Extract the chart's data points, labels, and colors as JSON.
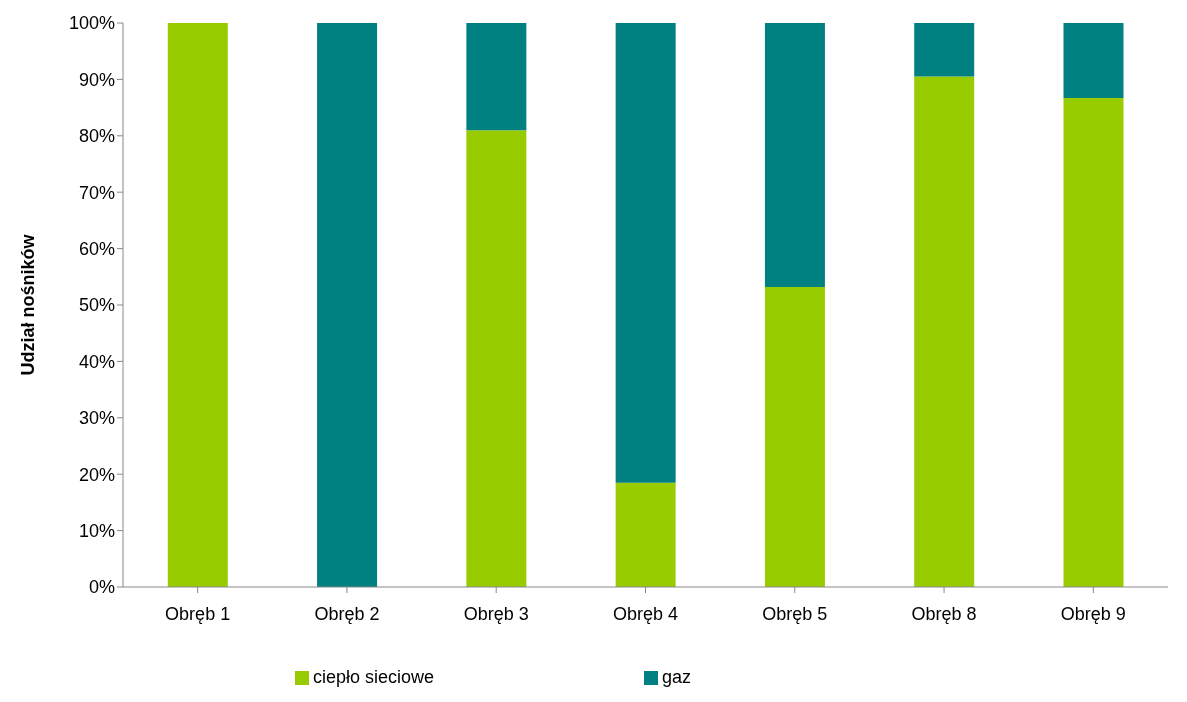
{
  "chart_data": {
    "type": "bar",
    "stacked": true,
    "ylabel": "Udział nośników",
    "categories": [
      "Obręb 1",
      "Obręb 2",
      "Obręb 3",
      "Obręb 4",
      "Obręb 5",
      "Obręb 8",
      "Obręb 9"
    ],
    "series": [
      {
        "name": "ciepło sieciowe",
        "color": "#99cc00",
        "values": [
          100,
          0,
          81,
          18.5,
          53.2,
          90.5,
          86.7
        ]
      },
      {
        "name": "gaz",
        "color": "#008080",
        "values": [
          0,
          100,
          19,
          81.5,
          46.8,
          9.5,
          13.3
        ]
      }
    ],
    "ylim": [
      0,
      100
    ],
    "yticks": [
      {
        "value": 0,
        "label": "0%"
      },
      {
        "value": 10,
        "label": "10%"
      },
      {
        "value": 20,
        "label": "20%"
      },
      {
        "value": 30,
        "label": "30%"
      },
      {
        "value": 40,
        "label": "40%"
      },
      {
        "value": 50,
        "label": "50%"
      },
      {
        "value": 60,
        "label": "60%"
      },
      {
        "value": 70,
        "label": "70%"
      },
      {
        "value": 80,
        "label": "80%"
      },
      {
        "value": 90,
        "label": "90%"
      },
      {
        "value": 100,
        "label": "100%"
      }
    ],
    "grid": false,
    "legend": "bottom"
  }
}
